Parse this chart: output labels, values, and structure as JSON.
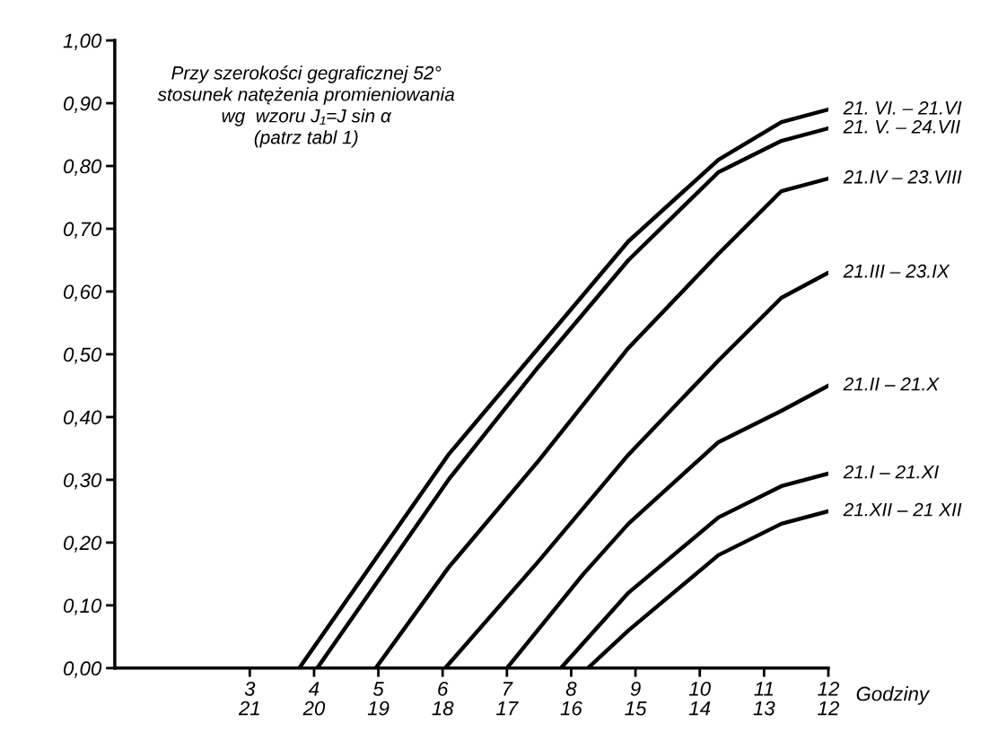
{
  "chart_data": {
    "type": "line",
    "xlabel": "Godziny",
    "annotations": [
      "Przy szerokości gegraficznej 52°\nstosunek natężenia promieniowania\nwg  wzoru J₁=J sin α\n(patrz tabl 1)"
    ],
    "xlim": [
      0.9,
      12
    ],
    "xticks": [
      3,
      4,
      5,
      6,
      7,
      8,
      9,
      10,
      11,
      12
    ],
    "x2lim": [
      23.1,
      12
    ],
    "x2ticks": [
      21,
      20,
      19,
      18,
      17,
      16,
      15,
      14,
      13,
      12
    ],
    "ylim": [
      0,
      1
    ],
    "yticks": [
      {
        "value": 0,
        "label": "0,00"
      },
      {
        "value": 0.1,
        "label": "0,10"
      },
      {
        "value": 0.2,
        "label": "0,20"
      },
      {
        "value": 0.3,
        "label": "0,30"
      },
      {
        "value": 0.4,
        "label": "0,40"
      },
      {
        "value": 0.5,
        "label": "0,50"
      },
      {
        "value": 0.6,
        "label": "0,60"
      },
      {
        "value": 0.7,
        "label": "0,70"
      },
      {
        "value": 0.8,
        "label": "0,80"
      },
      {
        "value": 0.9,
        "label": "0,90"
      },
      {
        "value": 1,
        "label": "1,00"
      }
    ],
    "grid": false,
    "legend": false,
    "marker": "none",
    "line_style": "solid",
    "series": [
      {
        "name": "21. VI. – 21.VI",
        "color": "#000000",
        "x": [
          3.77,
          6.09,
          7.49,
          8.89,
          10.29,
          11.27,
          12
        ],
        "values": [
          0,
          0.34,
          0.51,
          0.68,
          0.81,
          0.87,
          0.89
        ]
      },
      {
        "name": "21. V. – 24.VII",
        "color": "#000000",
        "x": [
          4.05,
          6.09,
          7.49,
          8.89,
          10.29,
          11.27,
          12
        ],
        "values": [
          0,
          0.3,
          0.48,
          0.65,
          0.79,
          0.84,
          0.86
        ]
      },
      {
        "name": "21.IV – 23.VIII",
        "color": "#000000",
        "x": [
          4.96,
          6.09,
          7.49,
          8.89,
          10.29,
          11.27,
          12
        ],
        "values": [
          0,
          0.16,
          0.33,
          0.51,
          0.66,
          0.76,
          0.78
        ]
      },
      {
        "name": "21.III – 23.IX",
        "color": "#000000",
        "x": [
          6.04,
          7.49,
          8.89,
          10.29,
          11.27,
          12
        ],
        "values": [
          0,
          0.17,
          0.34,
          0.49,
          0.59,
          0.63
        ]
      },
      {
        "name": "21.II – 21.X",
        "color": "#000000",
        "x": [
          7.0,
          8.19,
          8.89,
          10.29,
          11.27,
          12
        ],
        "values": [
          0,
          0.15,
          0.23,
          0.36,
          0.41,
          0.45
        ]
      },
      {
        "name": "21.I – 21.XI",
        "color": "#000000",
        "x": [
          7.84,
          8.89,
          10.29,
          11.27,
          12
        ],
        "values": [
          0,
          0.12,
          0.24,
          0.29,
          0.31
        ]
      },
      {
        "name": "21.XII – 21 XII",
        "color": "#000000",
        "x": [
          8.26,
          8.89,
          10.29,
          11.27,
          12
        ],
        "values": [
          0,
          0.06,
          0.18,
          0.23,
          0.25
        ]
      }
    ]
  }
}
